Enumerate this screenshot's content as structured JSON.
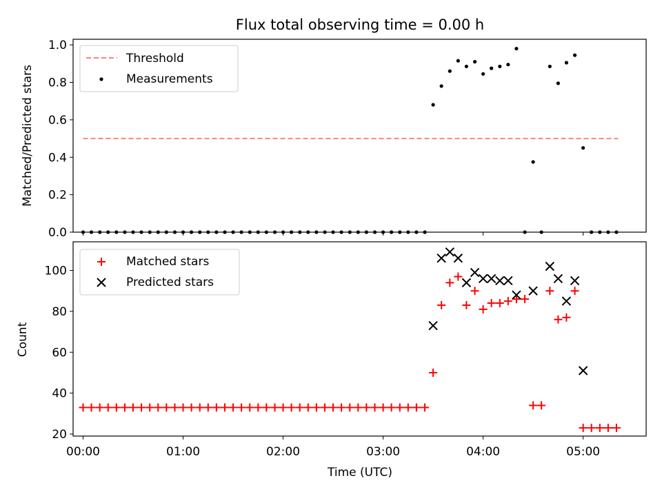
{
  "figure": {
    "title": "Flux total observing time = 0.00 h"
  },
  "chart_data": [
    {
      "type": "scatter",
      "ylabel": "Matched/Predicted stars",
      "ylim": [
        0,
        1.03
      ],
      "xlim": [
        -0.1,
        5.63
      ],
      "yticks": [
        0,
        0.2,
        0.4,
        0.6,
        0.8,
        1.0
      ],
      "ytick_labels": [
        "0.0",
        "0.2",
        "0.4",
        "0.6",
        "0.8",
        "1.0"
      ],
      "legend": {
        "placement": "top-left",
        "entries": [
          "Threshold",
          "Measurements"
        ]
      },
      "threshold": {
        "name": "Threshold",
        "value": 0.5,
        "x_range": [
          0.0,
          5.35
        ],
        "color": "#ff8080"
      },
      "measurements": {
        "name": "Measurements",
        "color": "#000000",
        "x": [
          0.0,
          0.083,
          0.167,
          0.25,
          0.333,
          0.417,
          0.5,
          0.583,
          0.667,
          0.75,
          0.833,
          0.917,
          1.0,
          1.083,
          1.167,
          1.25,
          1.333,
          1.417,
          1.5,
          1.583,
          1.667,
          1.75,
          1.833,
          1.917,
          2.0,
          2.083,
          2.167,
          2.25,
          2.333,
          2.417,
          2.5,
          2.583,
          2.667,
          2.75,
          2.833,
          2.917,
          3.0,
          3.083,
          3.167,
          3.25,
          3.333,
          3.417,
          3.5,
          3.583,
          3.667,
          3.75,
          3.833,
          3.917,
          4.0,
          4.083,
          4.167,
          4.25,
          4.333,
          4.417,
          4.5,
          4.583,
          4.667,
          4.75,
          4.833,
          4.917,
          5.0,
          5.083,
          5.167,
          5.25,
          5.333
        ],
        "y": [
          0,
          0,
          0,
          0,
          0,
          0,
          0,
          0,
          0,
          0,
          0,
          0,
          0,
          0,
          0,
          0,
          0,
          0,
          0,
          0,
          0,
          0,
          0,
          0,
          0,
          0,
          0,
          0,
          0,
          0,
          0,
          0,
          0,
          0,
          0,
          0,
          0,
          0,
          0,
          0,
          0,
          0,
          0.68,
          0.78,
          0.86,
          0.915,
          0.885,
          0.91,
          0.845,
          0.875,
          0.885,
          0.895,
          0.98,
          0,
          0.375,
          0,
          0.885,
          0.795,
          0.905,
          0.945,
          0.45,
          0,
          0,
          0,
          0
        ]
      }
    },
    {
      "type": "scatter",
      "xlabel": "Time (UTC)",
      "ylabel": "Count",
      "ylim": [
        19,
        114
      ],
      "xlim": [
        -0.1,
        5.63
      ],
      "yticks": [
        20,
        40,
        60,
        80,
        100
      ],
      "ytick_labels": [
        "20",
        "40",
        "60",
        "80",
        "100"
      ],
      "xticks": [
        0,
        1,
        2,
        3,
        4,
        5
      ],
      "xtick_labels": [
        "00:00",
        "01:00",
        "02:00",
        "03:00",
        "04:00",
        "05:00"
      ],
      "legend": {
        "placement": "top-left",
        "entries": [
          "Matched stars",
          "Predicted stars"
        ]
      },
      "series": [
        {
          "name": "Matched stars",
          "marker": "plus",
          "color": "#ff0000",
          "x": [
            0.0,
            0.083,
            0.167,
            0.25,
            0.333,
            0.417,
            0.5,
            0.583,
            0.667,
            0.75,
            0.833,
            0.917,
            1.0,
            1.083,
            1.167,
            1.25,
            1.333,
            1.417,
            1.5,
            1.583,
            1.667,
            1.75,
            1.833,
            1.917,
            2.0,
            2.083,
            2.167,
            2.25,
            2.333,
            2.417,
            2.5,
            2.583,
            2.667,
            2.75,
            2.833,
            2.917,
            3.0,
            3.083,
            3.167,
            3.25,
            3.333,
            3.417,
            3.5,
            3.583,
            3.667,
            3.75,
            3.833,
            3.917,
            4.0,
            4.083,
            4.167,
            4.25,
            4.333,
            4.417,
            4.5,
            4.583,
            4.667,
            4.75,
            4.833,
            4.917,
            5.0,
            5.083,
            5.167,
            5.25,
            5.333
          ],
          "y": [
            33,
            33,
            33,
            33,
            33,
            33,
            33,
            33,
            33,
            33,
            33,
            33,
            33,
            33,
            33,
            33,
            33,
            33,
            33,
            33,
            33,
            33,
            33,
            33,
            33,
            33,
            33,
            33,
            33,
            33,
            33,
            33,
            33,
            33,
            33,
            33,
            33,
            33,
            33,
            33,
            33,
            33,
            50,
            83,
            94,
            97,
            83,
            90,
            81,
            84,
            84,
            85,
            86,
            86,
            34,
            34,
            90,
            76,
            77,
            90,
            23,
            23,
            23,
            23,
            23
          ]
        },
        {
          "name": "Predicted stars",
          "marker": "x",
          "color": "#000000",
          "x": [
            3.5,
            3.583,
            3.667,
            3.75,
            3.833,
            3.917,
            4.0,
            4.083,
            4.167,
            4.25,
            4.333,
            4.5,
            4.667,
            4.75,
            4.833,
            4.917,
            5.0
          ],
          "y": [
            73,
            106,
            109,
            106,
            94,
            99,
            96,
            96,
            95,
            95,
            88,
            90,
            102,
            96,
            85,
            95,
            51
          ]
        }
      ]
    }
  ]
}
